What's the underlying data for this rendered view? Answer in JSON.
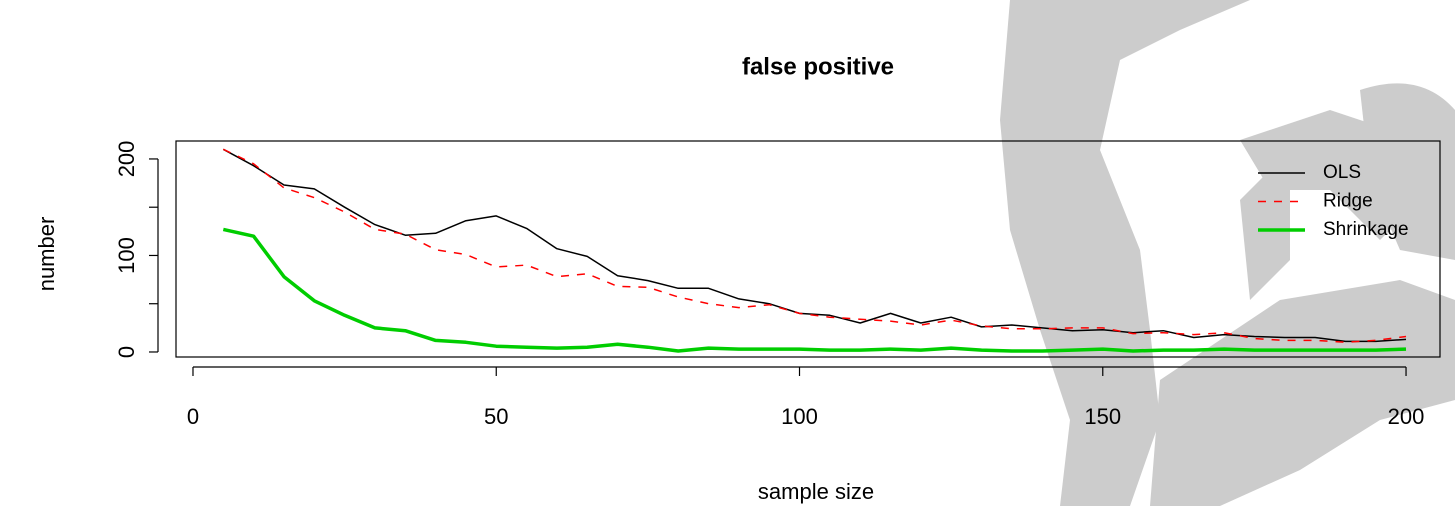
{
  "chart_data": {
    "type": "line",
    "title": "false positive",
    "x_label": "sample size",
    "y_label": "number",
    "x": [
      5,
      10,
      15,
      20,
      25,
      30,
      35,
      40,
      45,
      50,
      55,
      60,
      65,
      70,
      75,
      80,
      85,
      90,
      95,
      100,
      105,
      110,
      115,
      120,
      125,
      130,
      135,
      140,
      145,
      150,
      155,
      160,
      165,
      170,
      175,
      180,
      185,
      190,
      195,
      200
    ],
    "series": [
      {
        "name": "OLS",
        "color": "#000000",
        "style": "solid",
        "width": 1.5,
        "values": [
          210,
          193,
          173,
          169,
          150,
          132,
          121,
          123,
          136,
          141,
          128,
          107,
          99,
          79,
          74,
          66,
          66,
          55,
          50,
          40,
          38,
          30,
          40,
          30,
          36,
          26,
          28,
          25,
          22,
          23,
          20,
          22,
          15,
          18,
          16,
          15,
          15,
          11,
          11,
          13
        ]
      },
      {
        "name": "Ridge",
        "color": "#ff0000",
        "style": "dashed",
        "width": 1.5,
        "values": [
          210,
          195,
          170,
          160,
          145,
          127,
          122,
          106,
          101,
          88,
          90,
          78,
          81,
          68,
          67,
          57,
          50,
          46,
          49,
          40,
          36,
          34,
          32,
          28,
          33,
          27,
          24,
          24,
          25,
          25,
          19,
          20,
          18,
          20,
          14,
          12,
          12,
          10,
          12,
          16
        ]
      },
      {
        "name": "Shrinkage",
        "color": "#00cd00",
        "style": "solid",
        "width": 3.5,
        "values": [
          127,
          120,
          78,
          53,
          38,
          25,
          22,
          12,
          10,
          6,
          5,
          4,
          5,
          8,
          5,
          1,
          4,
          3,
          3,
          3,
          2,
          2,
          3,
          2,
          4,
          2,
          1,
          1,
          2,
          3,
          1,
          2,
          2,
          3,
          2,
          2,
          2,
          2,
          2,
          3
        ]
      }
    ],
    "xlim": [
      -2.8,
      205.6
    ],
    "xticks": [
      0,
      50,
      100,
      150,
      200
    ],
    "ylim": [
      -5.2,
      218.6
    ],
    "yticks": [
      0,
      100,
      200
    ],
    "yticks_unlabeled": [
      50,
      150
    ],
    "legend": "top-right"
  }
}
